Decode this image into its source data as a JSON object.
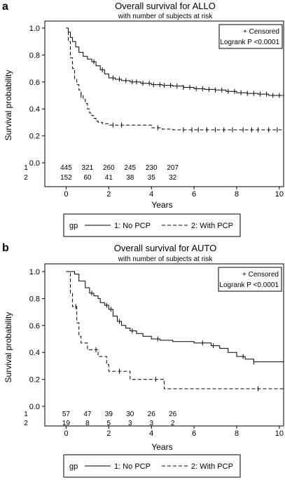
{
  "chart_data": [
    {
      "panel_letter": "a",
      "type": "line",
      "title": "Overall survival for ALLO",
      "subtitle": "with number of subjects at risk",
      "xlabel": "Years",
      "ylabel": "Survival probability",
      "xlim": [
        -1,
        10.2
      ],
      "ylim": [
        0,
        1.05
      ],
      "xticks": [
        0,
        2,
        4,
        6,
        8,
        10
      ],
      "yticks": [
        "0.0",
        "0.2",
        "0.4",
        "0.6",
        "0.8",
        "1.0"
      ],
      "annotation_lines": [
        "+ Censored",
        "Logrank P <0.0001"
      ],
      "legend_prefix": "gp",
      "at_risk": {
        "x": [
          0,
          1,
          2,
          3,
          4,
          5
        ],
        "rows": [
          {
            "label": "1",
            "values": [
              "445",
              "321",
              "260",
              "245",
              "230",
              "207"
            ]
          },
          {
            "label": "2",
            "values": [
              "152",
              "60",
              "41",
              "38",
              "35",
              "32"
            ]
          }
        ]
      },
      "series": [
        {
          "name": "1: No PCP",
          "style": "solid",
          "points": [
            [
              0,
              1.0
            ],
            [
              0.1,
              0.97
            ],
            [
              0.2,
              0.93
            ],
            [
              0.3,
              0.9
            ],
            [
              0.45,
              0.86
            ],
            [
              0.6,
              0.82
            ],
            [
              0.8,
              0.79
            ],
            [
              1.0,
              0.77
            ],
            [
              1.2,
              0.75
            ],
            [
              1.4,
              0.72
            ],
            [
              1.6,
              0.69
            ],
            [
              1.8,
              0.66
            ],
            [
              2.0,
              0.63
            ],
            [
              2.3,
              0.62
            ],
            [
              2.6,
              0.61
            ],
            [
              3.0,
              0.6
            ],
            [
              3.5,
              0.59
            ],
            [
              4.0,
              0.58
            ],
            [
              4.5,
              0.575
            ],
            [
              5.0,
              0.57
            ],
            [
              5.5,
              0.56
            ],
            [
              6.0,
              0.55
            ],
            [
              6.5,
              0.545
            ],
            [
              7.0,
              0.54
            ],
            [
              7.5,
              0.53
            ],
            [
              8.0,
              0.52
            ],
            [
              8.5,
              0.515
            ],
            [
              9.0,
              0.51
            ],
            [
              9.5,
              0.5
            ],
            [
              10.2,
              0.49
            ]
          ],
          "censored": [
            1.3,
            1.7,
            2.2,
            2.5,
            2.8,
            3.1,
            3.3,
            3.6,
            3.9,
            4.1,
            4.4,
            4.6,
            4.9,
            5.2,
            5.5,
            5.8,
            6.1,
            6.4,
            6.7,
            7.0,
            7.3,
            7.6,
            7.9,
            8.2,
            8.5,
            8.8,
            9.1,
            9.4,
            9.7,
            10.0
          ]
        },
        {
          "name": "2: With PCP",
          "style": "dashed",
          "points": [
            [
              0,
              1.0
            ],
            [
              0.1,
              0.9
            ],
            [
              0.2,
              0.78
            ],
            [
              0.3,
              0.7
            ],
            [
              0.4,
              0.62
            ],
            [
              0.5,
              0.58
            ],
            [
              0.6,
              0.54
            ],
            [
              0.7,
              0.5
            ],
            [
              0.8,
              0.47
            ],
            [
              0.9,
              0.44
            ],
            [
              1.0,
              0.4
            ],
            [
              1.1,
              0.37
            ],
            [
              1.2,
              0.35
            ],
            [
              1.3,
              0.33
            ],
            [
              1.4,
              0.31
            ],
            [
              1.5,
              0.3
            ],
            [
              1.7,
              0.29
            ],
            [
              2.0,
              0.28
            ],
            [
              3.0,
              0.28
            ],
            [
              4.0,
              0.26
            ],
            [
              4.5,
              0.25
            ],
            [
              5.0,
              0.245
            ],
            [
              10.2,
              0.245
            ]
          ],
          "censored": [
            0.7,
            2.2,
            2.6,
            4.3,
            5.5,
            5.9,
            6.2,
            6.6,
            7.0,
            7.4,
            7.8,
            8.3,
            8.7,
            9.0,
            9.5,
            9.9
          ]
        }
      ]
    },
    {
      "panel_letter": "b",
      "type": "line",
      "title": "Overall survival for AUTO",
      "subtitle": "with number of subjects at risk",
      "xlabel": "Years",
      "ylabel": "Survival probability",
      "xlim": [
        -1,
        10.2
      ],
      "ylim": [
        0,
        1.05
      ],
      "xticks": [
        0,
        2,
        4,
        6,
        8,
        10
      ],
      "yticks": [
        "0.0",
        "0.2",
        "0.4",
        "0.6",
        "0.8",
        "1.0"
      ],
      "annotation_lines": [
        "+ Censored",
        "Logrank P <0.0001"
      ],
      "legend_prefix": "gp",
      "at_risk": {
        "x": [
          0,
          1,
          2,
          3,
          4,
          5
        ],
        "rows": [
          {
            "label": "1",
            "values": [
              "57",
              "47",
              "39",
              "30",
              "26",
              "26"
            ]
          },
          {
            "label": "2",
            "values": [
              "19",
              "8",
              "5",
              "3",
              "3",
              "2"
            ]
          }
        ]
      },
      "series": [
        {
          "name": "1: No PCP",
          "style": "solid",
          "points": [
            [
              0,
              1.0
            ],
            [
              0.4,
              0.98
            ],
            [
              0.6,
              0.93
            ],
            [
              0.9,
              0.88
            ],
            [
              1.1,
              0.84
            ],
            [
              1.3,
              0.82
            ],
            [
              1.5,
              0.8
            ],
            [
              1.6,
              0.77
            ],
            [
              1.8,
              0.75
            ],
            [
              2.0,
              0.72
            ],
            [
              2.2,
              0.67
            ],
            [
              2.4,
              0.63
            ],
            [
              2.6,
              0.6
            ],
            [
              2.8,
              0.58
            ],
            [
              3.0,
              0.56
            ],
            [
              3.3,
              0.54
            ],
            [
              3.6,
              0.52
            ],
            [
              4.0,
              0.5
            ],
            [
              4.4,
              0.49
            ],
            [
              5.0,
              0.48
            ],
            [
              6.0,
              0.47
            ],
            [
              6.6,
              0.47
            ],
            [
              6.8,
              0.45
            ],
            [
              7.2,
              0.43
            ],
            [
              7.6,
              0.4
            ],
            [
              8.0,
              0.37
            ],
            [
              8.4,
              0.35
            ],
            [
              8.8,
              0.33
            ],
            [
              10.2,
              0.33
            ]
          ],
          "censored": [
            1.2,
            1.9,
            2.1,
            2.5,
            3.1,
            4.3,
            6.4,
            6.9,
            8.3,
            8.8
          ]
        },
        {
          "name": "2: With PCP",
          "style": "dashed",
          "points": [
            [
              0,
              1.0
            ],
            [
              0.2,
              0.84
            ],
            [
              0.3,
              0.74
            ],
            [
              0.5,
              0.62
            ],
            [
              0.6,
              0.52
            ],
            [
              0.7,
              0.47
            ],
            [
              1.0,
              0.42
            ],
            [
              1.5,
              0.37
            ],
            [
              1.9,
              0.31
            ],
            [
              2.0,
              0.26
            ],
            [
              2.9,
              0.26
            ],
            [
              3.0,
              0.2
            ],
            [
              4.5,
              0.2
            ],
            [
              4.6,
              0.13
            ],
            [
              10.2,
              0.13
            ]
          ],
          "censored": [
            0.45,
            1.4,
            2.5,
            4.2,
            9.0
          ]
        }
      ]
    }
  ]
}
